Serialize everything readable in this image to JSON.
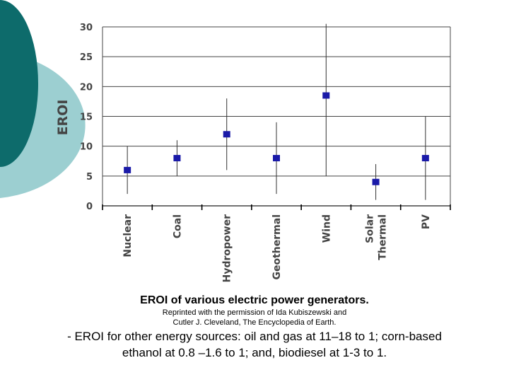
{
  "theme": {
    "decor_dark": "#0d6b6b",
    "decor_light": "#9ccfd1",
    "marker_color": "#1a1aa8",
    "axis_text_color": "#444444",
    "grid_color": "#444444"
  },
  "chart_data": {
    "type": "scatter",
    "ylabel": "EROI",
    "xlabel": "",
    "title": "",
    "ylim": [
      0,
      30
    ],
    "yticks": [
      0,
      5,
      10,
      15,
      20,
      25,
      30
    ],
    "grid": "horizontal",
    "categories": [
      {
        "lines": [
          "Nuclear"
        ]
      },
      {
        "lines": [
          "Coal"
        ]
      },
      {
        "lines": [
          "Hydropower"
        ]
      },
      {
        "lines": [
          "Geothermal"
        ]
      },
      {
        "lines": [
          "Wind"
        ]
      },
      {
        "lines": [
          "Solar",
          "Thermal"
        ]
      },
      {
        "lines": [
          "PV"
        ]
      }
    ],
    "series": [
      {
        "values": [
          6,
          8,
          12,
          8,
          18.5,
          4,
          8
        ],
        "low": [
          2,
          5,
          6,
          2,
          5,
          1,
          1
        ],
        "high": [
          10,
          11,
          18,
          14,
          30.5,
          7,
          15
        ]
      }
    ]
  },
  "caption": {
    "title": "EROI of various electric power generators.",
    "credit_lines": [
      "Reprinted with the permission of Ida Kubiszewski and",
      "Cutler J. Cleveland, The Encyclopedia of Earth."
    ],
    "note_lines": [
      "- EROI for other energy sources: oil and gas at 11–18 to 1;  corn-based",
      "ethanol at 0.8 –1.6 to 1;  and,  biodiesel at 1-3 to 1."
    ]
  }
}
